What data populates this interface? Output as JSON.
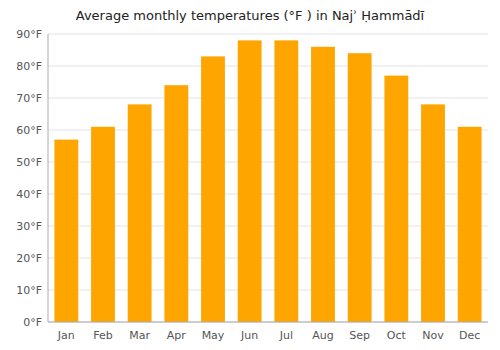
{
  "chart_data": {
    "type": "bar",
    "title": "Average monthly temperatures (°F ) in Najʾ Ḥammādī",
    "categories": [
      "Jan",
      "Feb",
      "Mar",
      "Apr",
      "May",
      "Jun",
      "Jul",
      "Aug",
      "Sep",
      "Oct",
      "Nov",
      "Dec"
    ],
    "values": [
      57,
      61,
      68,
      74,
      83,
      88,
      88,
      86,
      84,
      77,
      68,
      61
    ],
    "color": "#FFA500",
    "ylim": [
      0,
      90
    ],
    "yticks": [
      {
        "value": 0,
        "label": "0°F"
      },
      {
        "value": 10,
        "label": "10°F"
      },
      {
        "value": 20,
        "label": "20°F"
      },
      {
        "value": 30,
        "label": "30°F"
      },
      {
        "value": 40,
        "label": "40°F"
      },
      {
        "value": 50,
        "label": "50°F"
      },
      {
        "value": 60,
        "label": "60°F"
      },
      {
        "value": 70,
        "label": "70°F"
      },
      {
        "value": 80,
        "label": "80°F"
      },
      {
        "value": 90,
        "label": "90°F"
      }
    ],
    "grid": true
  }
}
